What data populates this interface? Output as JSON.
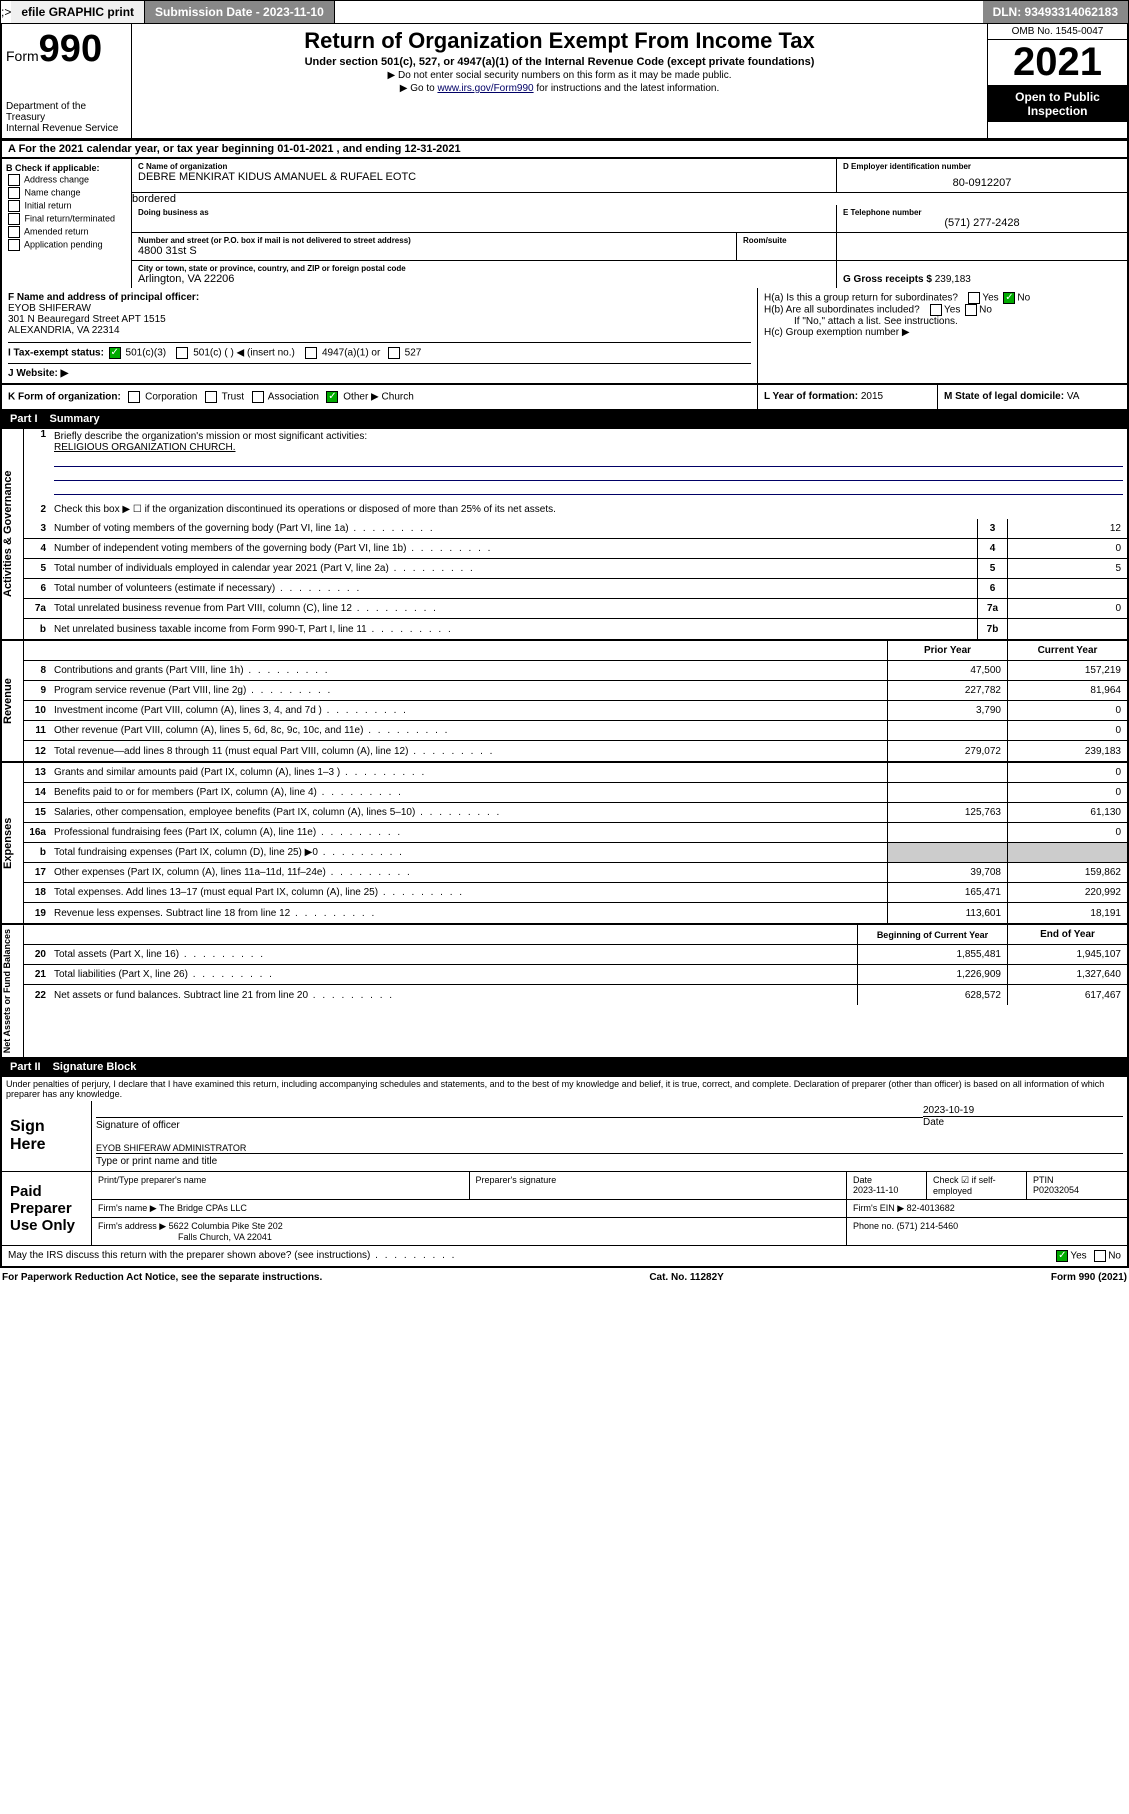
{
  "topbar": {
    "efile": "efile GRAPHIC print",
    "submission_label": "Submission Date - 2023-11-10",
    "dln": "DLN: 93493314062183"
  },
  "header": {
    "form_label": "Form",
    "form_num": "990",
    "dept": "Department of the Treasury",
    "irs": "Internal Revenue Service",
    "title": "Return of Organization Exempt From Income Tax",
    "subtitle": "Under section 501(c), 527, or 4947(a)(1) of the Internal Revenue Code (except private foundations)",
    "note1": "▶ Do not enter social security numbers on this form as it may be made public.",
    "note2_pre": "▶ Go to ",
    "note2_link": "www.irs.gov/Form990",
    "note2_post": " for instructions and the latest information.",
    "omb": "OMB No. 1545-0047",
    "year": "2021",
    "inspection": "Open to Public Inspection"
  },
  "section_a": "A  For the 2021 calendar year, or tax year beginning 01-01-2021   , and ending 12-31-2021",
  "block_b": {
    "title": "B Check if applicable:",
    "items": [
      "Address change",
      "Name change",
      "Initial return",
      "Final return/terminated",
      "Amended return",
      "Application pending"
    ]
  },
  "block_c": {
    "name_lbl": "C Name of organization",
    "name": "DEBRE MENKIRAT KIDUS AMANUEL & RUFAEL EOTC",
    "dba_lbl": "Doing business as",
    "dba": "",
    "street_lbl": "Number and street (or P.O. box if mail is not delivered to street address)",
    "street": "4800 31st S",
    "suite_lbl": "Room/suite",
    "city_lbl": "City or town, state or province, country, and ZIP or foreign postal code",
    "city": "Arlington, VA  22206"
  },
  "block_d": {
    "ein_lbl": "D Employer identification number",
    "ein": "80-0912207",
    "phone_lbl": "E Telephone number",
    "phone": "(571) 277-2428",
    "gross_lbl": "G Gross receipts $",
    "gross": "239,183"
  },
  "block_f": {
    "lbl": "F  Name and address of principal officer:",
    "name": "EYOB SHIFERAW",
    "addr1": "301 N Beauregard Street APT 1515",
    "addr2": "ALEXANDRIA, VA  22314"
  },
  "block_h": {
    "ha": "H(a)  Is this a group return for subordinates?",
    "hb": "H(b)  Are all subordinates included?",
    "hb_note": "If \"No,\" attach a list. See instructions.",
    "hc": "H(c)  Group exemption number ▶"
  },
  "tax_status": {
    "lbl": "I   Tax-exempt status:",
    "opts": [
      "501(c)(3)",
      "501(c) (  ) ◀ (insert no.)",
      "4947(a)(1) or",
      "527"
    ]
  },
  "website": {
    "lbl": "J   Website: ▶",
    "val": ""
  },
  "block_k": {
    "form_org": "K Form of organization:",
    "opts": [
      "Corporation",
      "Trust",
      "Association",
      "Other ▶"
    ],
    "other_val": "Church",
    "year_lbl": "L Year of formation:",
    "year_val": "2015",
    "domicile_lbl": "M State of legal domicile:",
    "domicile_val": "VA"
  },
  "part1": {
    "num": "Part I",
    "title": "Summary",
    "q1": "Briefly describe the organization's mission or most significant activities:",
    "mission": "RELIGIOUS ORGANIZATION CHURCH.",
    "q2": "Check this box ▶ ☐  if the organization discontinued its operations or disposed of more than 25% of its net assets.",
    "rows_gov": [
      {
        "n": "3",
        "t": "Number of voting members of the governing body (Part VI, line 1a)",
        "box": "3",
        "v": "12"
      },
      {
        "n": "4",
        "t": "Number of independent voting members of the governing body (Part VI, line 1b)",
        "box": "4",
        "v": "0"
      },
      {
        "n": "5",
        "t": "Total number of individuals employed in calendar year 2021 (Part V, line 2a)",
        "box": "5",
        "v": "5"
      },
      {
        "n": "6",
        "t": "Total number of volunteers (estimate if necessary)",
        "box": "6",
        "v": ""
      },
      {
        "n": "7a",
        "t": "Total unrelated business revenue from Part VIII, column (C), line 12",
        "box": "7a",
        "v": "0"
      },
      {
        "n": "b",
        "t": "Net unrelated business taxable income from Form 990-T, Part I, line 11",
        "box": "7b",
        "v": ""
      }
    ],
    "col_hdr_prior": "Prior Year",
    "col_hdr_current": "Current Year",
    "rows_rev": [
      {
        "n": "8",
        "t": "Contributions and grants (Part VIII, line 1h)",
        "p": "47,500",
        "c": "157,219"
      },
      {
        "n": "9",
        "t": "Program service revenue (Part VIII, line 2g)",
        "p": "227,782",
        "c": "81,964"
      },
      {
        "n": "10",
        "t": "Investment income (Part VIII, column (A), lines 3, 4, and 7d )",
        "p": "3,790",
        "c": "0"
      },
      {
        "n": "11",
        "t": "Other revenue (Part VIII, column (A), lines 5, 6d, 8c, 9c, 10c, and 11e)",
        "p": "",
        "c": "0"
      },
      {
        "n": "12",
        "t": "Total revenue—add lines 8 through 11 (must equal Part VIII, column (A), line 12)",
        "p": "279,072",
        "c": "239,183"
      }
    ],
    "rows_exp": [
      {
        "n": "13",
        "t": "Grants and similar amounts paid (Part IX, column (A), lines 1–3 )",
        "p": "",
        "c": "0"
      },
      {
        "n": "14",
        "t": "Benefits paid to or for members (Part IX, column (A), line 4)",
        "p": "",
        "c": "0"
      },
      {
        "n": "15",
        "t": "Salaries, other compensation, employee benefits (Part IX, column (A), lines 5–10)",
        "p": "125,763",
        "c": "61,130"
      },
      {
        "n": "16a",
        "t": "Professional fundraising fees (Part IX, column (A), line 11e)",
        "p": "",
        "c": "0"
      },
      {
        "n": "b",
        "t": "Total fundraising expenses (Part IX, column (D), line 25) ▶0",
        "p": "grey",
        "c": "grey"
      },
      {
        "n": "17",
        "t": "Other expenses (Part IX, column (A), lines 11a–11d, 11f–24e)",
        "p": "39,708",
        "c": "159,862"
      },
      {
        "n": "18",
        "t": "Total expenses. Add lines 13–17 (must equal Part IX, column (A), line 25)",
        "p": "165,471",
        "c": "220,992"
      },
      {
        "n": "19",
        "t": "Revenue less expenses. Subtract line 18 from line 12",
        "p": "113,601",
        "c": "18,191"
      }
    ],
    "col_hdr_begin": "Beginning of Current Year",
    "col_hdr_end": "End of Year",
    "rows_net": [
      {
        "n": "20",
        "t": "Total assets (Part X, line 16)",
        "p": "1,855,481",
        "c": "1,945,107"
      },
      {
        "n": "21",
        "t": "Total liabilities (Part X, line 26)",
        "p": "1,226,909",
        "c": "1,327,640"
      },
      {
        "n": "22",
        "t": "Net assets or fund balances. Subtract line 21 from line 20",
        "p": "628,572",
        "c": "617,467"
      }
    ],
    "vtabs": [
      "Activities & Governance",
      "Revenue",
      "Expenses",
      "Net Assets or Fund Balances"
    ]
  },
  "part2": {
    "num": "Part II",
    "title": "Signature Block",
    "penalty": "Under penalties of perjury, I declare that I have examined this return, including accompanying schedules and statements, and to the best of my knowledge and belief, it is true, correct, and complete. Declaration of preparer (other than officer) is based on all information of which preparer has any knowledge.",
    "sign_here": "Sign Here",
    "sig_officer_lbl": "Signature of officer",
    "date_lbl": "Date",
    "sig_date": "2023-10-19",
    "officer_name": "EYOB SHIFERAW  ADMINISTRATOR",
    "officer_name_lbl": "Type or print name and title",
    "paid_lbl": "Paid Preparer Use Only",
    "prep_name_lbl": "Print/Type preparer's name",
    "prep_sig_lbl": "Preparer's signature",
    "prep_date_lbl": "Date",
    "prep_date": "2023-11-10",
    "self_emp_lbl": "Check ☑ if self-employed",
    "ptin_lbl": "PTIN",
    "ptin": "P02032054",
    "firm_name_lbl": "Firm's name    ▶",
    "firm_name": "The Bridge CPAs LLC",
    "firm_ein_lbl": "Firm's EIN ▶",
    "firm_ein": "82-4013682",
    "firm_addr_lbl": "Firm's address ▶",
    "firm_addr1": "5622 Columbia Pike Ste 202",
    "firm_addr2": "Falls Church, VA  22041",
    "firm_phone_lbl": "Phone no.",
    "firm_phone": "(571) 214-5460",
    "discuss": "May the IRS discuss this return with the preparer shown above? (see instructions)"
  },
  "footer": {
    "left": "For Paperwork Reduction Act Notice, see the separate instructions.",
    "mid": "Cat. No. 11282Y",
    "right": "Form 990 (2021)"
  }
}
